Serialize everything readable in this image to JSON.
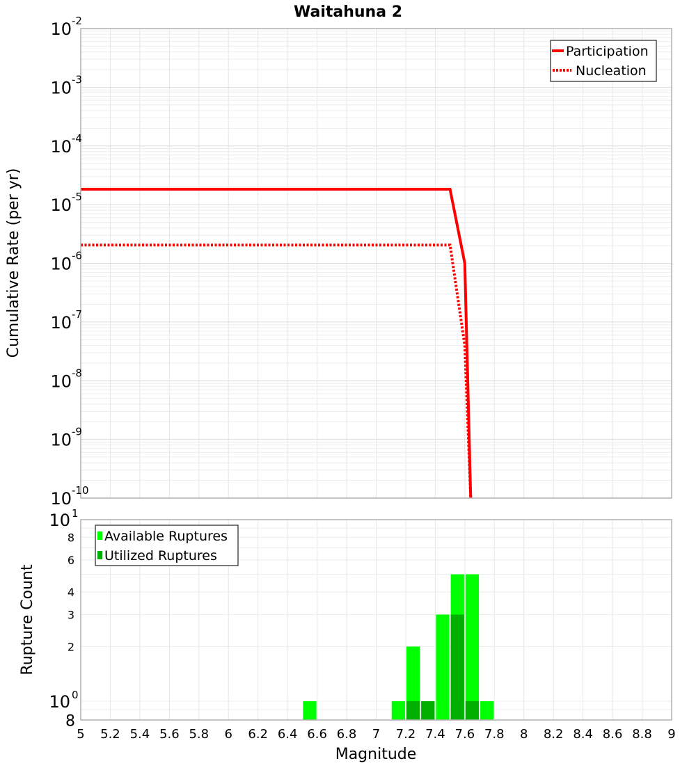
{
  "title": "Waitahuna 2",
  "chart_data": [
    {
      "type": "line",
      "title": "Waitahuna 2",
      "xlabel": "Magnitude",
      "ylabel": "Cumulative Rate (per yr)",
      "xlim": [
        5,
        9
      ],
      "ylim": [
        1e-10,
        0.01
      ],
      "yscale": "log",
      "grid": true,
      "legend_position": "top-right",
      "y_ticks": [
        {
          "exp": "-2",
          "value": 0.01
        },
        {
          "exp": "-3",
          "value": 0.001
        },
        {
          "exp": "-4",
          "value": 0.0001
        },
        {
          "exp": "-5",
          "value": 1e-05
        },
        {
          "exp": "-6",
          "value": 1e-06
        },
        {
          "exp": "-7",
          "value": 1e-07
        },
        {
          "exp": "-8",
          "value": 1e-08
        },
        {
          "exp": "-9",
          "value": 1e-09
        },
        {
          "exp": "-10",
          "value": 1e-10
        }
      ],
      "series": [
        {
          "name": "Participation",
          "style": "solid",
          "color": "#ff0000",
          "x": [
            5.0,
            7.5,
            7.6,
            7.64
          ],
          "y": [
            1.83e-05,
            1.83e-05,
            1e-06,
            1e-10
          ]
        },
        {
          "name": "Nucleation",
          "style": "dotted",
          "color": "#ff0000",
          "x": [
            5.0,
            7.5,
            7.6,
            7.64
          ],
          "y": [
            2.05e-06,
            2.05e-06,
            4e-08,
            1e-10
          ]
        }
      ]
    },
    {
      "type": "bar",
      "xlabel": "Magnitude",
      "ylabel": "Rupture Count",
      "xlim": [
        5,
        9
      ],
      "ylim": [
        0.8,
        10
      ],
      "yscale": "log",
      "grid": true,
      "legend_position": "top-left",
      "bin_width": 0.1,
      "y_ticks": [
        {
          "label": "10",
          "exp": "1",
          "value": 10,
          "major": true
        },
        {
          "label": "8",
          "value": 8,
          "major": false
        },
        {
          "label": "6",
          "value": 6,
          "major": false
        },
        {
          "label": "4",
          "value": 4,
          "major": false
        },
        {
          "label": "3",
          "value": 3,
          "major": false
        },
        {
          "label": "2",
          "value": 2,
          "major": false
        },
        {
          "label": "10",
          "exp": "0",
          "value": 1,
          "major": true
        },
        {
          "label": "8",
          "value": 0.8,
          "major": true
        }
      ],
      "categories": [
        6.55,
        7.15,
        7.25,
        7.35,
        7.45,
        7.55,
        7.65,
        7.75
      ],
      "series": [
        {
          "name": "Available Ruptures",
          "color": "#00ff00",
          "values": [
            1,
            1,
            2,
            1,
            3,
            5,
            5,
            1
          ]
        },
        {
          "name": "Utilized Ruptures",
          "color": "#00b000",
          "values": [
            0,
            0,
            1,
            1,
            0,
            3,
            1,
            0
          ]
        }
      ]
    }
  ],
  "x_ticks": [
    "5",
    "5.2",
    "5.4",
    "5.6",
    "5.8",
    "6",
    "6.2",
    "6.4",
    "6.6",
    "6.8",
    "7",
    "7.2",
    "7.4",
    "7.6",
    "7.8",
    "8",
    "8.2",
    "8.4",
    "8.6",
    "8.8",
    "9"
  ],
  "legend_top": [
    "Participation",
    "Nucleation"
  ],
  "legend_bottom": [
    "Available Ruptures",
    "Utilized Ruptures"
  ]
}
